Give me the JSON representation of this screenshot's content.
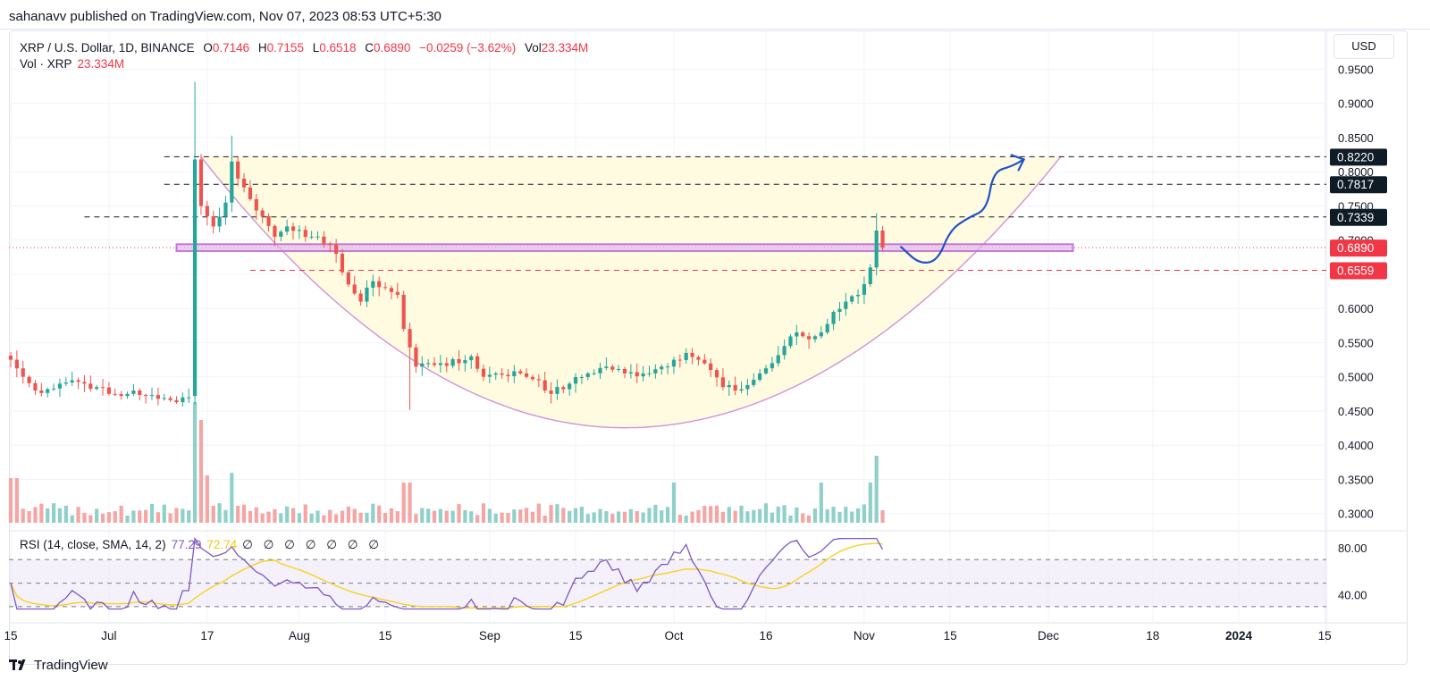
{
  "header": {
    "published": "sahanavv published on TradingView.com, Nov 07, 2023 08:53 UTC+5:30"
  },
  "legend": {
    "symbol": "XRP / U.S. Dollar, 1D, BINANCE",
    "o_label": "O",
    "o_value": "0.7146",
    "h_label": "H",
    "h_value": "0.7155",
    "l_label": "L",
    "l_value": "0.6518",
    "c_label": "C",
    "c_value": "0.6890",
    "change": "−0.0259 (−3.62%)",
    "vol_label": "Vol",
    "vol_value": "23.334M",
    "vol_line_label": "Vol · XRP",
    "vol_line_value": "23.334M"
  },
  "rsi_legend": {
    "label": "RSI (14, close, SMA, 14, 2)",
    "rsi_value": "77.29",
    "sma_value": "72.74",
    "extras": "∅ ∅ ∅ ∅ ∅ ∅ ∅"
  },
  "currency_button": "USD",
  "brand": "TradingView",
  "colors": {
    "up": "#26a69a",
    "down": "#ef5350",
    "vol_up": "#8fd0c9",
    "vol_down": "#f5a5a3",
    "rsi": "#7e57c2",
    "rsi_sma": "#f7d21e",
    "cup_fill": "#fffbe0",
    "cup_line": "#ce93d8",
    "zone": "#c774e0",
    "arrow": "#2051c8",
    "label_dark": "#0f1c26",
    "label_red": "#f23645"
  },
  "chart_data": {
    "type": "candlestick",
    "price_ticks": [
      "0.9500",
      "0.9000",
      "0.8500",
      "0.8000",
      "0.7500",
      "0.7000",
      "0.6500",
      "0.6000",
      "0.5500",
      "0.5000",
      "0.4500",
      "0.4000",
      "0.3500",
      "0.3000"
    ],
    "price_range": [
      0.28,
      0.965
    ],
    "rsi_ticks": [
      "80.00",
      "40.00"
    ],
    "rsi_range": [
      20,
      90
    ],
    "x_ticks": [
      {
        "label": "15",
        "day": 0
      },
      {
        "label": "Jul",
        "day": 16
      },
      {
        "label": "17",
        "day": 32
      },
      {
        "label": "Aug",
        "day": 47
      },
      {
        "label": "15",
        "day": 61
      },
      {
        "label": "Sep",
        "day": 78
      },
      {
        "label": "15",
        "day": 92
      },
      {
        "label": "Oct",
        "day": 108
      },
      {
        "label": "16",
        "day": 123
      },
      {
        "label": "Nov",
        "day": 139
      },
      {
        "label": "15",
        "day": 153
      },
      {
        "label": "Dec",
        "day": 169
      },
      {
        "label": "18",
        "day": 186
      },
      {
        "label": "2024",
        "day": 200
      },
      {
        "label": "15",
        "day": 214
      }
    ],
    "x_start": "2023-06-15",
    "level_labels": [
      {
        "value": 0.822,
        "text": "0.8220",
        "style": "dark"
      },
      {
        "value": 0.7817,
        "text": "0.7817",
        "style": "dark"
      },
      {
        "value": 0.7339,
        "text": "0.7339",
        "style": "dark"
      },
      {
        "value": 0.689,
        "text": "0.6890",
        "style": "red"
      },
      {
        "value": 0.6559,
        "text": "0.6559",
        "style": "red"
      }
    ],
    "dashed_levels": [
      {
        "value": 0.822,
        "from_day": 25,
        "to_day": 220
      },
      {
        "value": 0.7817,
        "from_day": 25,
        "to_day": 220
      },
      {
        "value": 0.7339,
        "from_day": 12,
        "to_day": 220
      },
      {
        "value": 0.6559,
        "from_day": 39,
        "to_day": 220,
        "color": "red"
      }
    ],
    "last_price": 0.689,
    "zone": {
      "low": 0.684,
      "high": 0.694,
      "from_day": 27,
      "to_day": 173
    },
    "cup": {
      "left_day": 31,
      "left_price": 0.822,
      "bottom_day": 100,
      "bottom_price": 0.4255,
      "right_day": 171,
      "right_price": 0.822
    },
    "arrow_path": [
      [
        145,
        0.69
      ],
      [
        148,
        0.665
      ],
      [
        151,
        0.67
      ],
      [
        153,
        0.715
      ],
      [
        156,
        0.733
      ],
      [
        159,
        0.745
      ],
      [
        160,
        0.8
      ],
      [
        163,
        0.808
      ],
      [
        165,
        0.818
      ]
    ],
    "anchors": [
      [
        0,
        0.525
      ],
      [
        2,
        0.5
      ],
      [
        4,
        0.48
      ],
      [
        6,
        0.482
      ],
      [
        8,
        0.49
      ],
      [
        10,
        0.495
      ],
      [
        12,
        0.49
      ],
      [
        14,
        0.485
      ],
      [
        16,
        0.475
      ],
      [
        18,
        0.472
      ],
      [
        20,
        0.48
      ],
      [
        22,
        0.472
      ],
      [
        24,
        0.468
      ],
      [
        26,
        0.466
      ],
      [
        28,
        0.47
      ],
      [
        29,
        0.47
      ],
      [
        30,
        0.818
      ],
      [
        31,
        0.75
      ],
      [
        33,
        0.72
      ],
      [
        35,
        0.755
      ],
      [
        36,
        0.815
      ],
      [
        37,
        0.79
      ],
      [
        39,
        0.76
      ],
      [
        41,
        0.735
      ],
      [
        43,
        0.705
      ],
      [
        45,
        0.72
      ],
      [
        47,
        0.715
      ],
      [
        49,
        0.705
      ],
      [
        51,
        0.695
      ],
      [
        53,
        0.68
      ],
      [
        55,
        0.635
      ],
      [
        57,
        0.61
      ],
      [
        59,
        0.64
      ],
      [
        61,
        0.63
      ],
      [
        63,
        0.62
      ],
      [
        64,
        0.57
      ],
      [
        66,
        0.515
      ],
      [
        68,
        0.52
      ],
      [
        70,
        0.52
      ],
      [
        73,
        0.52
      ],
      [
        75,
        0.53
      ],
      [
        77,
        0.5
      ],
      [
        79,
        0.505
      ],
      [
        83,
        0.505
      ],
      [
        86,
        0.495
      ],
      [
        88,
        0.475
      ],
      [
        91,
        0.49
      ],
      [
        94,
        0.505
      ],
      [
        97,
        0.515
      ],
      [
        100,
        0.505
      ],
      [
        103,
        0.505
      ],
      [
        106,
        0.515
      ],
      [
        108,
        0.525
      ],
      [
        110,
        0.535
      ],
      [
        112,
        0.525
      ],
      [
        114,
        0.51
      ],
      [
        116,
        0.485
      ],
      [
        118,
        0.48
      ],
      [
        120,
        0.488
      ],
      [
        122,
        0.505
      ],
      [
        124,
        0.52
      ],
      [
        126,
        0.545
      ],
      [
        128,
        0.565
      ],
      [
        130,
        0.555
      ],
      [
        132,
        0.565
      ],
      [
        134,
        0.595
      ],
      [
        136,
        0.61
      ],
      [
        138,
        0.62
      ],
      [
        140,
        0.66
      ],
      [
        141,
        0.714
      ],
      [
        142,
        0.689
      ]
    ],
    "volume_note": "Volume sub-pane, last bar 23.334M"
  }
}
